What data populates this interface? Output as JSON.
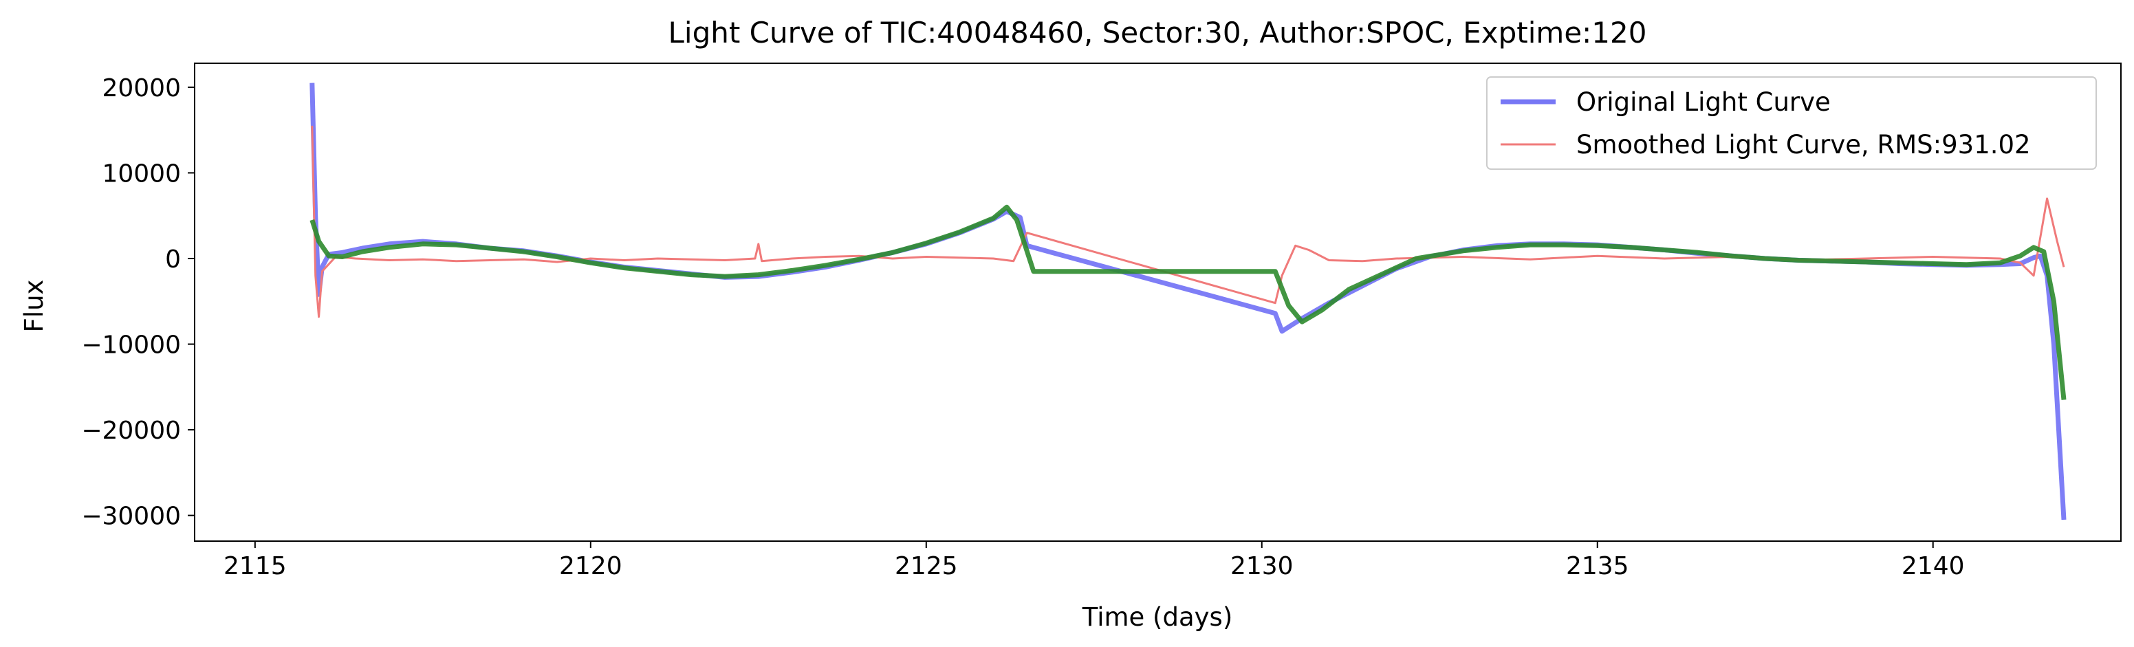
{
  "chart_data": {
    "type": "line",
    "title": "Light Curve of TIC:40048460, Sector:30, Author:SPOC, Exptime:120",
    "xlabel": "Time (days)",
    "ylabel": "Flux",
    "xlim": [
      2114.1,
      2142.8
    ],
    "ylim": [
      -33000,
      22800
    ],
    "grid": false,
    "legend_position": "top-right",
    "x_ticks": [
      2115,
      2120,
      2125,
      2130,
      2135,
      2140
    ],
    "y_ticks": [
      20000,
      10000,
      0,
      -10000,
      -20000,
      -30000
    ],
    "x_tick_labels": [
      "2115",
      "2120",
      "2125",
      "2130",
      "2135",
      "2140"
    ],
    "y_tick_labels": [
      "20000",
      "10000",
      "0",
      "−10000",
      "−20000",
      "−30000"
    ],
    "legend": [
      {
        "label": "Original Light Curve",
        "color": "#7777f5"
      },
      {
        "label": "Smoothed Light Curve, RMS:931.02",
        "color": "#f07a7a"
      }
    ],
    "series": [
      {
        "name": "Original Light Curve",
        "color": "#7777f5",
        "x": [
          2115.85,
          2115.9,
          2115.95,
          2116.0,
          2116.1,
          2116.3,
          2116.6,
          2117.0,
          2117.5,
          2118.0,
          2118.5,
          2119.0,
          2119.5,
          2120.0,
          2120.5,
          2121.0,
          2121.5,
          2122.0,
          2122.5,
          2123.0,
          2123.5,
          2124.0,
          2124.5,
          2125.0,
          2125.5,
          2126.0,
          2126.2,
          2126.4,
          2126.5,
          2130.2,
          2130.3,
          2130.4,
          2130.6,
          2131.0,
          2131.5,
          2132.0,
          2132.5,
          2133.0,
          2133.5,
          2134.0,
          2134.5,
          2135.0,
          2135.5,
          2136.0,
          2136.5,
          2137.0,
          2137.5,
          2138.0,
          2138.5,
          2139.0,
          2139.5,
          2140.0,
          2140.5,
          2141.0,
          2141.3,
          2141.5,
          2141.6,
          2141.7,
          2141.8,
          2141.95
        ],
        "y": [
          20500,
          5000,
          -4200,
          -1000,
          500,
          700,
          1200,
          1700,
          2000,
          1700,
          1200,
          900,
          300,
          -400,
          -1000,
          -1400,
          -1800,
          -2200,
          -2100,
          -1600,
          -1000,
          -200,
          700,
          1700,
          3000,
          4600,
          5500,
          4800,
          1500,
          -6400,
          -8500,
          -8000,
          -7000,
          -5200,
          -3200,
          -1200,
          200,
          1000,
          1500,
          1700,
          1700,
          1600,
          1300,
          1000,
          600,
          300,
          0,
          -200,
          -300,
          -400,
          -600,
          -700,
          -800,
          -700,
          -600,
          100,
          300,
          -2000,
          -10000,
          -30500
        ]
      },
      {
        "name": "Smoothed Light Curve, RMS:931.02",
        "color": "#f07a7a",
        "x": [
          2115.85,
          2115.9,
          2115.95,
          2116.0,
          2116.2,
          2116.5,
          2117.0,
          2117.5,
          2118.0,
          2118.5,
          2119.0,
          2119.5,
          2120.0,
          2120.5,
          2121.0,
          2121.5,
          2122.0,
          2122.45,
          2122.5,
          2122.55,
          2123.0,
          2123.5,
          2124.0,
          2124.5,
          2125.0,
          2125.5,
          2126.0,
          2126.3,
          2126.5,
          2130.2,
          2130.3,
          2130.5,
          2130.7,
          2131.0,
          2131.5,
          2132.0,
          2133.0,
          2134.0,
          2135.0,
          2136.0,
          2137.0,
          2138.0,
          2139.0,
          2140.0,
          2141.0,
          2141.3,
          2141.5,
          2141.7,
          2141.85,
          2141.95
        ],
        "y": [
          15500,
          -2000,
          -6800,
          -1500,
          200,
          0,
          -200,
          -100,
          -300,
          -200,
          -100,
          -400,
          0,
          -200,
          0,
          -100,
          -200,
          0,
          1700,
          -300,
          0,
          200,
          300,
          0,
          200,
          100,
          0,
          -300,
          3000,
          -5200,
          -2000,
          1500,
          1000,
          -200,
          -300,
          0,
          200,
          -100,
          300,
          0,
          200,
          -200,
          0,
          200,
          0,
          -500,
          -2000,
          7000,
          2000,
          -1000
        ]
      },
      {
        "color": "#2e8b2e",
        "x": [
          2115.85,
          2115.95,
          2116.1,
          2116.3,
          2116.6,
          2117.0,
          2117.5,
          2118.0,
          2118.5,
          2119.0,
          2119.5,
          2120.0,
          2120.5,
          2121.0,
          2121.5,
          2122.0,
          2122.5,
          2123.0,
          2123.5,
          2124.0,
          2124.5,
          2125.0,
          2125.5,
          2126.0,
          2126.2,
          2126.35,
          2126.6,
          2130.2,
          2130.4,
          2130.6,
          2130.9,
          2131.3,
          2131.8,
          2132.3,
          2133.0,
          2133.5,
          2134.0,
          2134.5,
          2135.0,
          2135.5,
          2136.0,
          2136.5,
          2137.0,
          2137.5,
          2138.0,
          2138.5,
          2139.0,
          2139.5,
          2140.0,
          2140.5,
          2141.0,
          2141.3,
          2141.5,
          2141.65,
          2141.8,
          2141.95
        ],
        "y": [
          4500,
          2000,
          300,
          200,
          800,
          1300,
          1700,
          1600,
          1200,
          800,
          200,
          -500,
          -1100,
          -1500,
          -1900,
          -2100,
          -1900,
          -1400,
          -800,
          -100,
          700,
          1800,
          3100,
          4700,
          6000,
          4500,
          -1500,
          -1500,
          -5500,
          -7400,
          -6000,
          -3600,
          -1800,
          0,
          900,
          1300,
          1600,
          1600,
          1500,
          1300,
          1000,
          700,
          300,
          0,
          -200,
          -300,
          -400,
          -500,
          -600,
          -700,
          -500,
          300,
          1300,
          800,
          -5000,
          -16500
        ]
      }
    ]
  }
}
